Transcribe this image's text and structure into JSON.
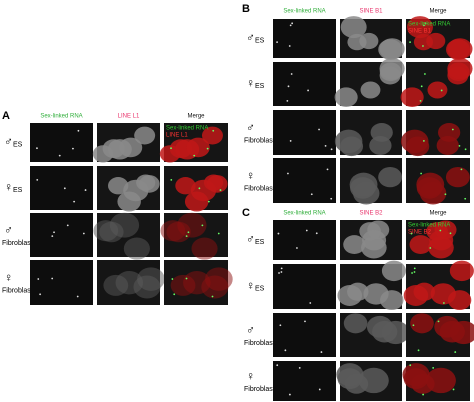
{
  "panels": [
    {
      "label": "A",
      "columns": [
        "Sex-linked RNA",
        "LINE L1",
        "Merge"
      ],
      "merge_legend": [
        "Sex-linked RNA",
        "LINE L1"
      ],
      "rows": [
        {
          "sex": "♂",
          "cell": "ES"
        },
        {
          "sex": "♀",
          "cell": "ES"
        },
        {
          "sex": "♂",
          "cell": "Fibroblast"
        },
        {
          "sex": "♀",
          "cell": "Fibroblast"
        }
      ]
    },
    {
      "label": "B",
      "columns": [
        "Sex-linked RNA",
        "SINE B1",
        "Merge"
      ],
      "merge_legend": [
        "Sex-linked RNA",
        "SINE B1"
      ],
      "rows": [
        {
          "sex": "♂",
          "cell": "ES"
        },
        {
          "sex": "♀",
          "cell": "ES"
        },
        {
          "sex": "♂",
          "cell": "Fibroblast"
        },
        {
          "sex": "♀",
          "cell": "Fibroblast"
        }
      ]
    },
    {
      "label": "C",
      "columns": [
        "Sex-linked RNA",
        "SINE B2",
        "Merge"
      ],
      "merge_legend": [
        "Sex-linked RNA",
        "SINE B2"
      ],
      "rows": [
        {
          "sex": "♂",
          "cell": "ES"
        },
        {
          "sex": "♀",
          "cell": "ES"
        },
        {
          "sex": "♂",
          "cell": "Fibroblast"
        },
        {
          "sex": "♀",
          "cell": "Fibroblast"
        }
      ]
    }
  ]
}
